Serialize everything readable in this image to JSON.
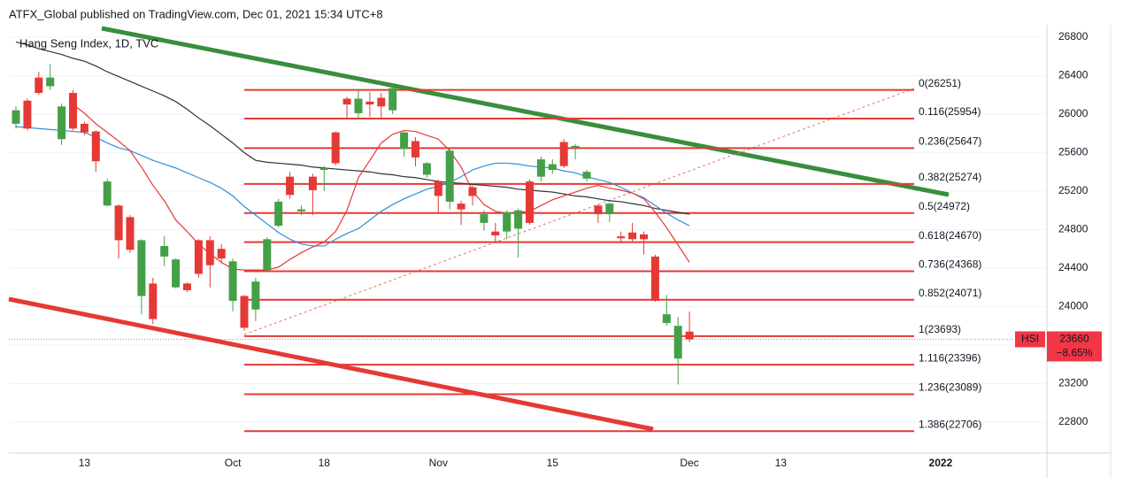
{
  "header": {
    "text": "ATFX_Global published on TradingView.com, Dec 01, 2021 15:34 UTC+8"
  },
  "chart_data": {
    "type": "candlestick",
    "title": "Hang Seng Index, 1D, TVC",
    "categories": [
      null,
      null,
      null,
      null,
      null,
      null,
      "13",
      null,
      null,
      null,
      null,
      null,
      null,
      null,
      null,
      null,
      null,
      null,
      null,
      "Oct",
      null,
      null,
      null,
      null,
      null,
      null,
      null,
      "18",
      null,
      null,
      null,
      null,
      null,
      null,
      null,
      null,
      null,
      "Nov",
      null,
      null,
      null,
      null,
      null,
      null,
      null,
      null,
      null,
      "15",
      null,
      null,
      null,
      null,
      null,
      null,
      null,
      null,
      null,
      null,
      null,
      "Dec",
      null,
      null,
      null,
      null,
      null,
      null,
      null,
      "13",
      null,
      null,
      null,
      null,
      null,
      null,
      null,
      null,
      null,
      null,
      null,
      null,
      null,
      "2022",
      null,
      null,
      null,
      null,
      null,
      null,
      null,
      null
    ],
    "open": [
      25900,
      26140,
      26380,
      26290,
      25740,
      26220,
      25900,
      25820,
      25050,
      25050,
      24930,
      24110,
      24240,
      24520,
      24200,
      24240,
      24690,
      24690,
      24600,
      24060,
      24110,
      23970,
      24380,
      24840,
      25350,
      24990,
      25350,
      25420,
      25810,
      26160,
      26010,
      26130,
      26170,
      26040,
      25640,
      25720,
      25370,
      25300,
      25090,
      25070,
      25240,
      24870,
      24780,
      24780,
      24810,
      25300,
      25350,
      25420,
      25710,
      25650,
      25330,
      25050,
      24960,
      24730,
      24770,
      24750,
      24520,
      23830,
      23460,
      23740,
      null,
      null,
      null,
      null,
      null,
      null,
      null,
      null,
      null,
      null,
      null,
      null,
      null,
      null,
      null,
      null,
      null,
      null,
      null,
      null,
      null,
      null,
      null,
      null,
      null,
      null,
      null,
      null,
      null,
      null
    ],
    "high": [
      26080,
      26160,
      26440,
      26520,
      26110,
      26250,
      25920,
      25830,
      25330,
      25060,
      24950,
      24700,
      24300,
      24730,
      24500,
      24250,
      24700,
      24730,
      24650,
      24500,
      24120,
      24300,
      24720,
      25120,
      25400,
      25050,
      25380,
      25460,
      25820,
      26180,
      26250,
      26230,
      26220,
      26310,
      25820,
      25760,
      25500,
      25320,
      25640,
      25100,
      25260,
      25000,
      24870,
      25000,
      25020,
      25320,
      25560,
      25530,
      25740,
      25690,
      25420,
      25060,
      25080,
      24780,
      24870,
      24780,
      24540,
      24120,
      23890,
      23950,
      null,
      null,
      null,
      null,
      null,
      null,
      null,
      null,
      null,
      null,
      null,
      null,
      null,
      null,
      null,
      null,
      null,
      null,
      null,
      null,
      null,
      null,
      null,
      null,
      null,
      null,
      null,
      null,
      null,
      null
    ],
    "low": [
      25850,
      25830,
      26200,
      26250,
      25680,
      25830,
      25780,
      25400,
      25040,
      24500,
      24560,
      23920,
      23820,
      24420,
      24190,
      24150,
      24300,
      24200,
      24450,
      23950,
      23750,
      23850,
      24360,
      24820,
      25120,
      24950,
      24950,
      25200,
      25470,
      25950,
      25950,
      25970,
      25950,
      26000,
      25560,
      25460,
      25340,
      24980,
      25010,
      24850,
      25050,
      24790,
      24660,
      24700,
      24510,
      24850,
      25300,
      25380,
      25440,
      25530,
      25300,
      24870,
      24880,
      24660,
      24680,
      24540,
      24050,
      23800,
      23190,
      23630,
      null,
      null,
      null,
      null,
      null,
      null,
      null,
      null,
      null,
      null,
      null,
      null,
      null,
      null,
      null,
      null,
      null,
      null,
      null,
      null,
      null,
      null,
      null,
      null,
      null,
      null,
      null,
      null,
      null,
      null
    ],
    "close": [
      26040,
      25850,
      26220,
      26380,
      26080,
      25850,
      25810,
      25510,
      25300,
      24690,
      24590,
      24690,
      23870,
      24630,
      24490,
      24170,
      24340,
      24430,
      24500,
      24470,
      23780,
      24260,
      24700,
      25090,
      25160,
      25010,
      25210,
      25440,
      25490,
      26100,
      26160,
      26100,
      26080,
      26270,
      25810,
      25550,
      25490,
      25150,
      25620,
      25010,
      25150,
      24960,
      24740,
      24980,
      25000,
      24870,
      25530,
      25480,
      25460,
      25670,
      25400,
      24960,
      25070,
      24710,
      24700,
      24700,
      24060,
      23920,
      23800,
      23660,
      null,
      null,
      null,
      null,
      null,
      null,
      null,
      null,
      null,
      null,
      null,
      null,
      null,
      null,
      null,
      null,
      null,
      null,
      null,
      null,
      null,
      null,
      null,
      null,
      null,
      null,
      null,
      null,
      null,
      null
    ],
    "up_color": "#43a047",
    "down_color": "#e53935",
    "moving_averages": [
      {
        "color": "#333333",
        "values": [
          26750,
          26720,
          26680,
          26650,
          26620,
          26580,
          26550,
          26500,
          26440,
          26390,
          26340,
          26290,
          26240,
          26190,
          26130,
          26050,
          25960,
          25880,
          25790,
          25700,
          25600,
          25520,
          25500,
          25490,
          25480,
          25470,
          25450,
          25440,
          25430,
          25420,
          25410,
          25400,
          25380,
          25370,
          25350,
          25340,
          25320,
          25300,
          25290,
          25280,
          25270,
          25260,
          25250,
          25240,
          25220,
          25210,
          25200,
          25190,
          25170,
          25150,
          25140,
          25120,
          25100,
          25090,
          25070,
          25050,
          25020,
          25000,
          24980,
          24960,
          null,
          null,
          null,
          null,
          null,
          null,
          null,
          null,
          null,
          null,
          null,
          null,
          null,
          null,
          null,
          null,
          null,
          null,
          null,
          null,
          null,
          null,
          null,
          null,
          null,
          null,
          null,
          null,
          null,
          null
        ]
      },
      {
        "color": "#2f8fd8",
        "values": [
          25870,
          25860,
          25850,
          25840,
          25830,
          25820,
          25810,
          25760,
          25700,
          25650,
          25620,
          25570,
          25520,
          25480,
          25440,
          25390,
          25340,
          25290,
          25230,
          25150,
          25040,
          24950,
          24860,
          24770,
          24700,
          24650,
          24630,
          24630,
          24700,
          24760,
          24810,
          24900,
          24990,
          25060,
          25120,
          25170,
          25220,
          25250,
          25290,
          25350,
          25420,
          25460,
          25490,
          25490,
          25480,
          25460,
          25450,
          25440,
          25410,
          25390,
          25350,
          25320,
          25290,
          25240,
          25180,
          25130,
          25050,
          24970,
          24900,
          24840,
          null,
          null,
          null,
          null,
          null,
          null,
          null,
          null,
          null,
          null,
          null,
          null,
          null,
          null,
          null,
          null,
          null,
          null,
          null,
          null,
          null,
          null,
          null,
          null,
          null,
          null,
          null,
          null,
          null,
          null
        ]
      },
      {
        "color": "#e53935",
        "values": [
          null,
          null,
          null,
          null,
          null,
          26100,
          26010,
          25900,
          25810,
          25720,
          25620,
          25450,
          25260,
          25100,
          24900,
          24780,
          24650,
          24550,
          24460,
          24390,
          24380,
          24380,
          24380,
          24410,
          24490,
          24560,
          24620,
          24670,
          24780,
          25000,
          25340,
          25520,
          25700,
          25790,
          25830,
          25820,
          25780,
          25740,
          25620,
          25450,
          25200,
          25060,
          24990,
          24970,
          24980,
          24990,
          25050,
          25110,
          25150,
          25190,
          25230,
          25260,
          25230,
          25210,
          25180,
          25120,
          24980,
          24820,
          24640,
          24460,
          null,
          null,
          null,
          null,
          null,
          null,
          null,
          null,
          null,
          null,
          null,
          null,
          null,
          null,
          null,
          null,
          null,
          null,
          null,
          null,
          null,
          null,
          null,
          null,
          null,
          null,
          null,
          null,
          null,
          null
        ]
      }
    ],
    "fib_levels": [
      {
        "value": 26251,
        "label": "0(26251)"
      },
      {
        "value": 25954,
        "label": "0.116(25954)"
      },
      {
        "value": 25647,
        "label": "0.236(25647)"
      },
      {
        "value": 25274,
        "label": "0.382(25274)"
      },
      {
        "value": 24972,
        "label": "0.5(24972)"
      },
      {
        "value": 24670,
        "label": "0.618(24670)"
      },
      {
        "value": 24368,
        "label": "0.736(24368)"
      },
      {
        "value": 24071,
        "label": "0.852(24071)"
      },
      {
        "value": 23693,
        "label": "1(23693)"
      },
      {
        "value": 23396,
        "label": "1.116(23396)"
      },
      {
        "value": 23089,
        "label": "1.236(23089)"
      },
      {
        "value": 22706,
        "label": "1.386(22706)"
      }
    ],
    "fib_color": "#e53935",
    "price_tag": {
      "symbol": "HSI",
      "value": 23660,
      "change": "−8.65%",
      "color": "#f23645"
    },
    "ylim": [
      22478,
      26910
    ],
    "yticks": [
      22800,
      23200,
      23600,
      24000,
      24400,
      24800,
      25200,
      25600,
      26000,
      26400,
      26800
    ],
    "grid": true
  }
}
